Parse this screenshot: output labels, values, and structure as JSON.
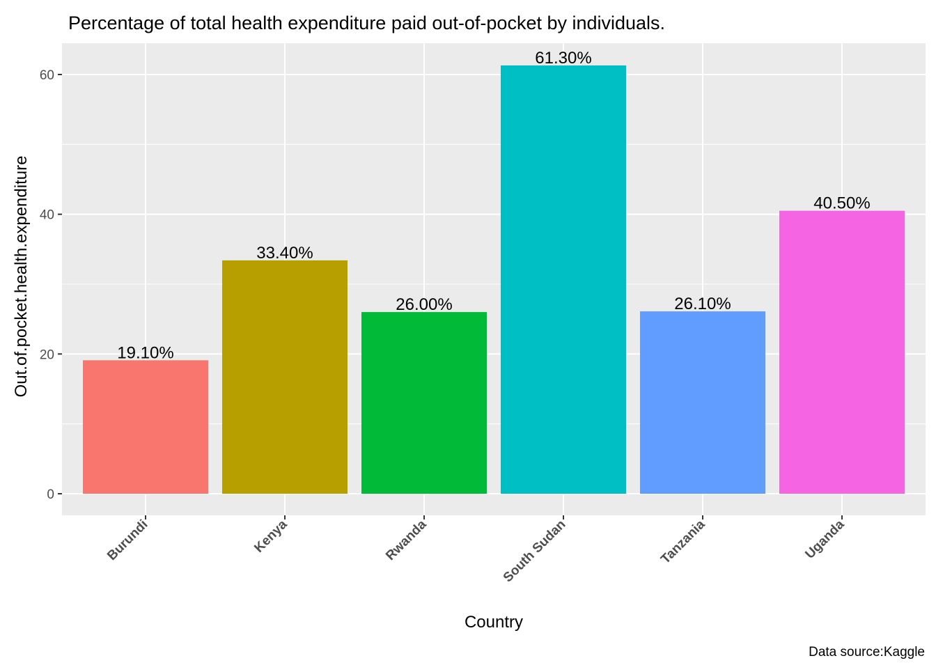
{
  "chart_data": {
    "type": "bar",
    "title": "Percentage of total health expenditure paid out-of-pocket by individuals.",
    "xlabel": "Country",
    "ylabel": "Out.of.pocket.health.expenditure",
    "caption": "Data source:Kaggle",
    "categories": [
      "Burundi",
      "Kenya",
      "Rwanda",
      "South Sudan",
      "Tanzania",
      "Uganda"
    ],
    "values": [
      19.1,
      33.4,
      26.0,
      61.3,
      26.1,
      40.5
    ],
    "data_labels": [
      "19.10%",
      "33.40%",
      "26.00%",
      "61.30%",
      "26.10%",
      "40.50%"
    ],
    "colors": [
      "#F8766D",
      "#B79F00",
      "#00BA38",
      "#00BFC4",
      "#619CFF",
      "#F564E3"
    ],
    "yticks": [
      0,
      20,
      40,
      60
    ],
    "ylim": [
      0,
      64.3
    ],
    "grid": true,
    "legend": "none"
  }
}
